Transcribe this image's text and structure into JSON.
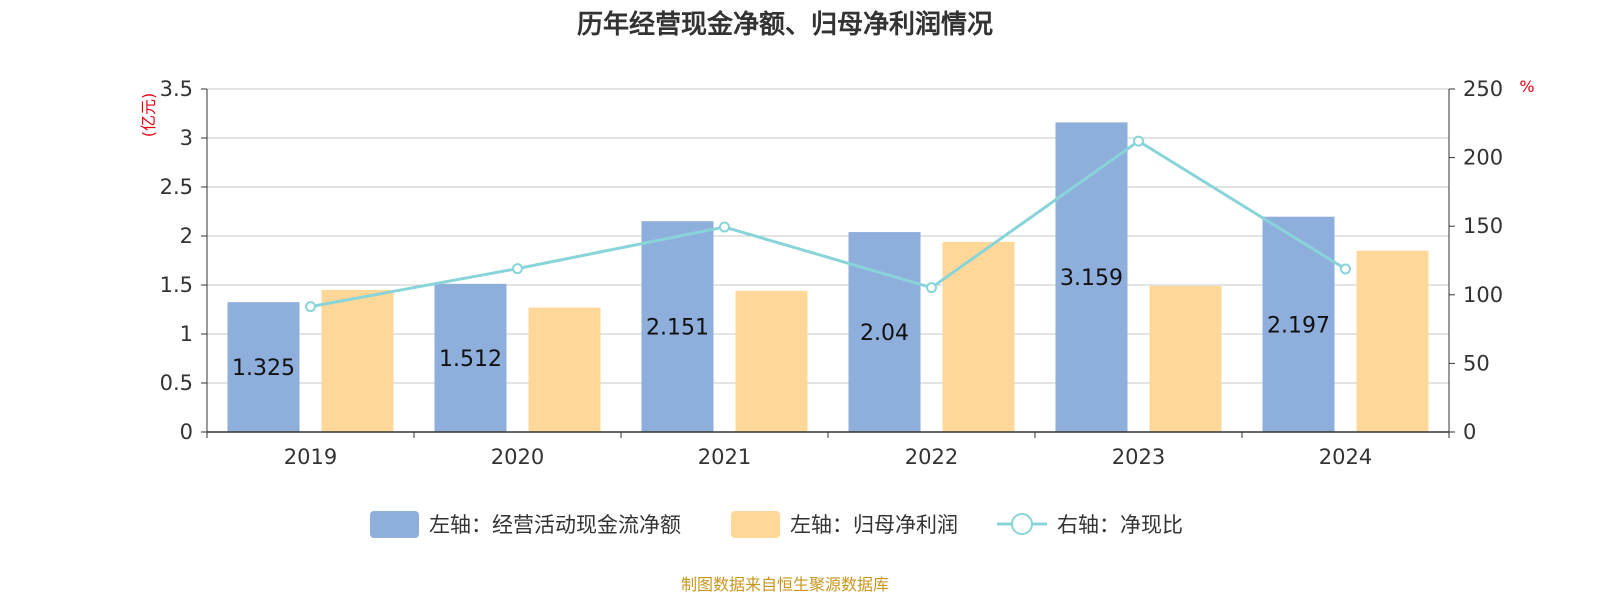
{
  "chart_data": {
    "type": "bar",
    "title": "历年经营现金净额、归母净利润情况",
    "categories": [
      "2019",
      "2020",
      "2021",
      "2022",
      "2023",
      "2024"
    ],
    "y_left": {
      "unit": "(亿元)",
      "ylim": [
        0,
        3.5
      ],
      "ticks": [
        "0",
        "0.5",
        "1",
        "1.5",
        "2",
        "2.5",
        "3",
        "3.5"
      ]
    },
    "y_right": {
      "unit": "%",
      "ylim": [
        0,
        250
      ],
      "ticks": [
        "0",
        "50",
        "100",
        "150",
        "200",
        "250"
      ]
    },
    "series": [
      {
        "name": "左轴：经营活动现金流净额",
        "type": "bar",
        "axis": "left",
        "color": "#8eaedb",
        "values": [
          1.325,
          1.512,
          2.151,
          2.04,
          3.159,
          2.197
        ],
        "labels": [
          "1.325",
          "1.512",
          "2.151",
          "2.04",
          "3.159",
          "2.197"
        ]
      },
      {
        "name": "左轴：归母净利润",
        "type": "bar",
        "axis": "left",
        "color": "#ffd899",
        "values": [
          1.45,
          1.27,
          1.44,
          1.94,
          1.49,
          1.85
        ]
      },
      {
        "name": "右轴：净现比",
        "type": "line",
        "axis": "right",
        "color": "#88d4d8",
        "values": [
          91.4,
          119.1,
          149.4,
          105.2,
          212.0,
          118.8
        ]
      }
    ],
    "grid": true,
    "legend_position": "bottom"
  },
  "source": "制图数据来自恒生聚源数据库"
}
